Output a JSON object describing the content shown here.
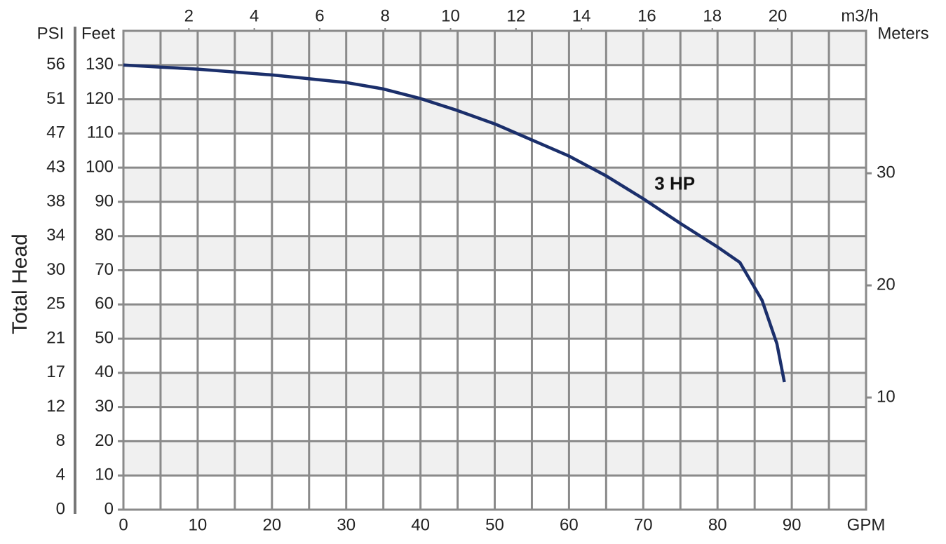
{
  "chart_data": {
    "type": "line",
    "y_title": "Total Head",
    "x_label": "GPM",
    "x2_label": "m3/h",
    "y_label": "Feet",
    "psi_label": "PSI",
    "y2_label": "Meters",
    "x": [
      0,
      5,
      10,
      20,
      30,
      35,
      40,
      45,
      50,
      60,
      65,
      70,
      75,
      80,
      83,
      86,
      88,
      89
    ],
    "series": [
      {
        "name": "3 HP",
        "color": "#1b2f6b",
        "values": [
          130,
          129.4,
          128.8,
          127.1,
          124.9,
          123,
          120.2,
          116.7,
          112.8,
          103.4,
          97.6,
          90.9,
          83.7,
          76.8,
          72.3,
          61.2,
          48.5,
          37.3
        ]
      }
    ],
    "xlim": [
      0,
      100
    ],
    "xticks": [
      0,
      10,
      20,
      30,
      40,
      50,
      60,
      70,
      80,
      90
    ],
    "ylim": [
      0,
      140
    ],
    "yticks": [
      0,
      10,
      20,
      30,
      40,
      50,
      60,
      70,
      80,
      90,
      100,
      110,
      120,
      130
    ],
    "psi_ticks": [
      {
        "value": 0,
        "label": "0"
      },
      {
        "value": 10,
        "label": "4"
      },
      {
        "value": 20,
        "label": "8"
      },
      {
        "value": 30,
        "label": "12"
      },
      {
        "value": 40,
        "label": "17"
      },
      {
        "value": 50,
        "label": "21"
      },
      {
        "value": 60,
        "label": "25"
      },
      {
        "value": 70,
        "label": "30"
      },
      {
        "value": 80,
        "label": "34"
      },
      {
        "value": 90,
        "label": "38"
      },
      {
        "value": 100,
        "label": "43"
      },
      {
        "value": 110,
        "label": "47"
      },
      {
        "value": 120,
        "label": "51"
      },
      {
        "value": 130,
        "label": "56"
      }
    ],
    "x2lim": [
      0,
      22.7
    ],
    "x2ticks": [
      2,
      4,
      6,
      8,
      10,
      12,
      14,
      16,
      18,
      20
    ],
    "y2lim": [
      0,
      42.7
    ],
    "y2ticks": [
      10,
      20,
      30
    ],
    "grid": true
  }
}
